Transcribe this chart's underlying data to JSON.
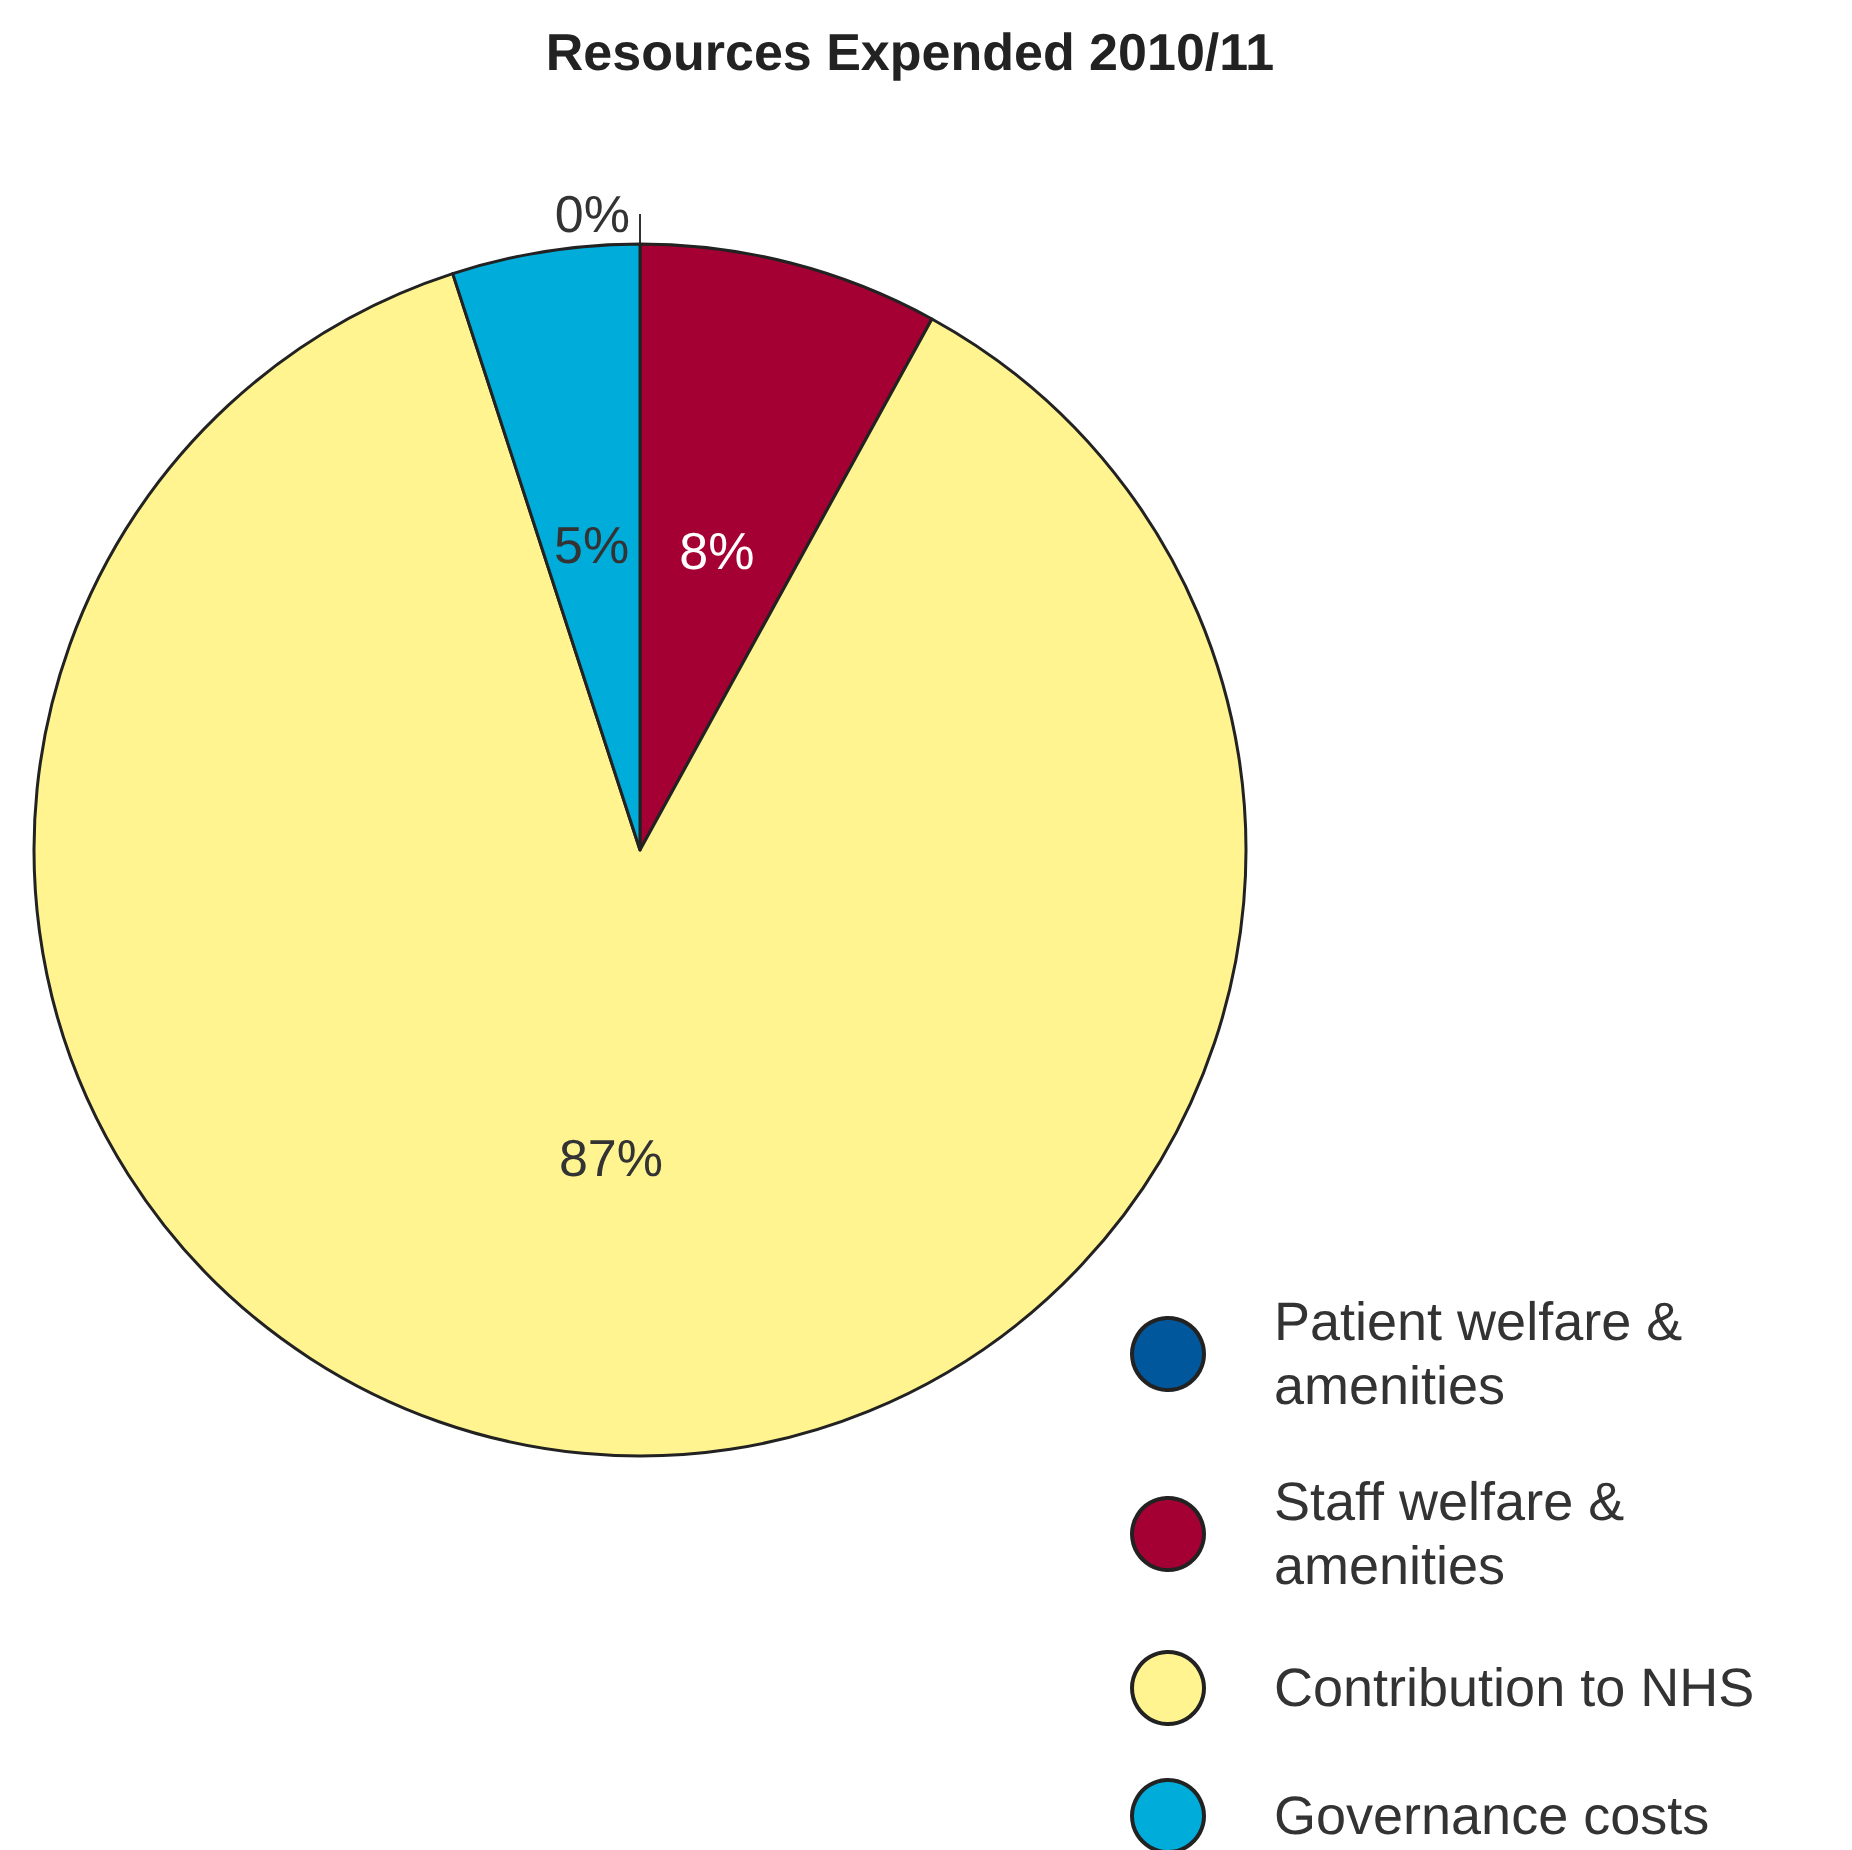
{
  "chart_data": {
    "type": "pie",
    "title": "Resources Expended 2010/11",
    "categories": [
      "Patient welfare & amenities",
      "Staff welfare & amenities",
      "Contribution to NHS",
      "Governance costs"
    ],
    "values": [
      0,
      8,
      87,
      5
    ],
    "colors": [
      "#00579c",
      "#a50034",
      "#fff48f",
      "#00acd9"
    ],
    "value_labels": [
      "0%",
      "8%",
      "87%",
      "5%"
    ],
    "legend": "bottom right"
  }
}
